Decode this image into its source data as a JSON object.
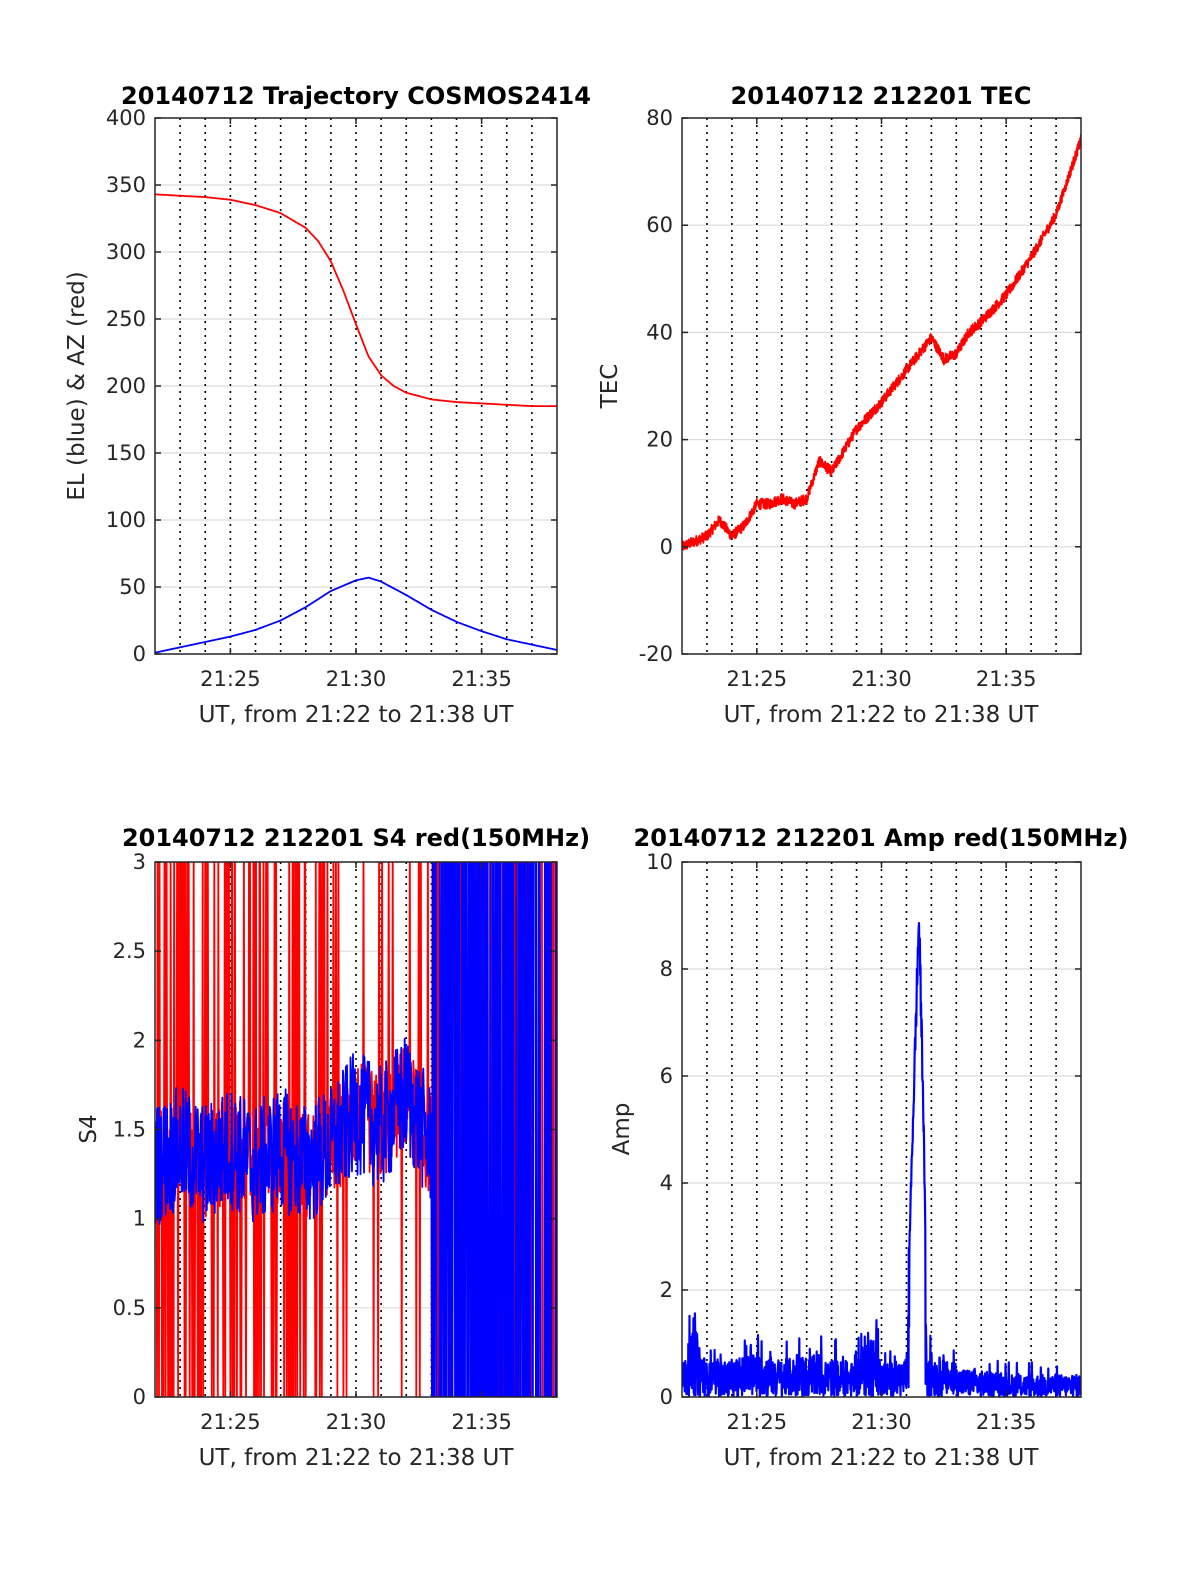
{
  "colors": {
    "red": "#ff0000",
    "blue": "#0000ff",
    "grid": "#dcdcdc",
    "axis": "#262626",
    "vline": "#000000"
  },
  "chart_data": [
    {
      "id": "trajectory",
      "type": "line",
      "title": "20140712 Trajectory COSMOS2414",
      "xlabel": "UT, from 21:22 to 21:38 UT",
      "ylabel": "EL (blue) & AZ (red)",
      "xlim": [
        "21:22",
        "21:38"
      ],
      "xticks": [
        "21:25",
        "21:30",
        "21:35"
      ],
      "ylim": [
        0,
        400
      ],
      "yticks": [
        "0",
        "50",
        "100",
        "150",
        "200",
        "250",
        "300",
        "350",
        "400"
      ],
      "grid": "horizontal",
      "series": [
        {
          "color": "red",
          "x": [
            "21:22",
            "21:23",
            "21:24",
            "21:25",
            "21:26",
            "21:27",
            "21:28",
            "21:28:30",
            "21:29",
            "21:29:30",
            "21:30",
            "21:30:30",
            "21:31",
            "21:31:30",
            "21:32",
            "21:33",
            "21:34",
            "21:35",
            "21:36",
            "21:37",
            "21:38"
          ],
          "values": [
            343,
            342,
            341,
            339,
            335,
            329,
            318,
            308,
            293,
            271,
            246,
            222,
            208,
            200,
            195,
            190,
            188,
            187,
            186,
            185,
            185
          ]
        },
        {
          "color": "blue",
          "x": [
            "21:22",
            "21:23",
            "21:24",
            "21:25",
            "21:26",
            "21:27",
            "21:28",
            "21:29",
            "21:30",
            "21:30:30",
            "21:31",
            "21:32",
            "21:33",
            "21:34",
            "21:35",
            "21:36",
            "21:37",
            "21:38"
          ],
          "values": [
            1,
            5,
            9,
            13,
            18,
            25,
            35,
            47,
            55,
            57,
            54,
            44,
            33,
            24,
            17,
            11,
            7,
            3
          ]
        }
      ]
    },
    {
      "id": "tec",
      "type": "line",
      "title": "20140712 212201 TEC",
      "xlabel": "UT, from 21:22 to 21:38 UT",
      "ylabel": "TEC",
      "xlim": [
        "21:22",
        "21:38"
      ],
      "xticks": [
        "21:25",
        "21:30",
        "21:35"
      ],
      "ylim": [
        -20,
        80
      ],
      "yticks": [
        "-20",
        "0",
        "20",
        "40",
        "60",
        "80"
      ],
      "grid": "horizontal",
      "series": [
        {
          "color": "red",
          "x": [
            "21:22",
            "21:23",
            "21:23:30",
            "21:24",
            "21:24:30",
            "21:25",
            "21:25:30",
            "21:26",
            "21:26:30",
            "21:27",
            "21:27:30",
            "21:28",
            "21:28:30",
            "21:29",
            "21:30",
            "21:31",
            "21:32",
            "21:32:30",
            "21:33",
            "21:33:30",
            "21:34",
            "21:35",
            "21:36",
            "21:37",
            "21:38"
          ],
          "values": [
            0,
            2,
            5,
            2,
            4,
            8,
            8,
            9,
            8,
            9,
            16,
            14,
            18,
            22,
            27,
            33,
            39,
            35,
            36,
            40,
            42,
            47,
            54,
            62,
            76
          ]
        }
      ]
    },
    {
      "id": "s4",
      "type": "line",
      "title": "20140712 212201 S4 red(150MHz)",
      "xlabel": "UT, from 21:22 to 21:38 UT",
      "ylabel": "S4",
      "xlim": [
        "21:22",
        "21:38"
      ],
      "xticks": [
        "21:25",
        "21:30",
        "21:35"
      ],
      "ylim": [
        0,
        3
      ],
      "yticks": [
        "0",
        "0.5",
        "1",
        "1.5",
        "2",
        "2.5",
        "3"
      ],
      "grid": "horizontal",
      "series": [
        {
          "color": "red",
          "x": [
            "21:22",
            "21:23",
            "21:24",
            "21:25",
            "21:26",
            "21:27",
            "21:28",
            "21:29",
            "21:30",
            "21:31",
            "21:32",
            "21:33",
            "21:34",
            "21:35",
            "21:36",
            "21:37",
            "21:38"
          ],
          "values": [
            1.3,
            1.4,
            1.3,
            1.4,
            1.3,
            1.4,
            1.3,
            1.4,
            1.6,
            1.5,
            1.7,
            1.4,
            1.5,
            1.5,
            1.5,
            1.5,
            1.5
          ]
        },
        {
          "color": "blue",
          "x": [
            "21:22",
            "21:23",
            "21:24",
            "21:25",
            "21:26",
            "21:27",
            "21:28",
            "21:29",
            "21:30",
            "21:31",
            "21:32",
            "21:33",
            "21:34",
            "21:35",
            "21:36",
            "21:37",
            "21:38"
          ],
          "values": [
            1.3,
            1.4,
            1.3,
            1.4,
            1.3,
            1.4,
            1.3,
            1.4,
            1.6,
            1.5,
            1.7,
            1.4,
            1.5,
            1.5,
            1.5,
            1.5,
            1.5
          ]
        }
      ]
    },
    {
      "id": "amp",
      "type": "line",
      "title": "20140712 212201 Amp red(150MHz)",
      "xlabel": "UT, from 21:22 to 21:38 UT",
      "ylabel": "Amp",
      "xlim": [
        "21:22",
        "21:38"
      ],
      "xticks": [
        "21:25",
        "21:30",
        "21:35"
      ],
      "ylim": [
        0,
        10
      ],
      "yticks": [
        "0",
        "2",
        "4",
        "6",
        "8",
        "10"
      ],
      "grid": "horizontal",
      "series": [
        {
          "color": "blue",
          "x": [
            "21:22",
            "21:22:30",
            "21:23",
            "21:24",
            "21:25",
            "21:26",
            "21:27",
            "21:28",
            "21:29",
            "21:29:30",
            "21:30",
            "21:31",
            "21:31:30",
            "21:31:40",
            "21:31:50",
            "21:32",
            "21:33",
            "21:34",
            "21:35",
            "21:36",
            "21:37",
            "21:38"
          ],
          "values": [
            0.8,
            1.9,
            0.9,
            1.0,
            1.2,
            1.0,
            1.1,
            1.0,
            0.9,
            2.0,
            0.9,
            1.0,
            9.4,
            6.0,
            0.9,
            1.2,
            0.8,
            0.7,
            0.6,
            0.6,
            0.6,
            0.6
          ]
        }
      ]
    }
  ]
}
